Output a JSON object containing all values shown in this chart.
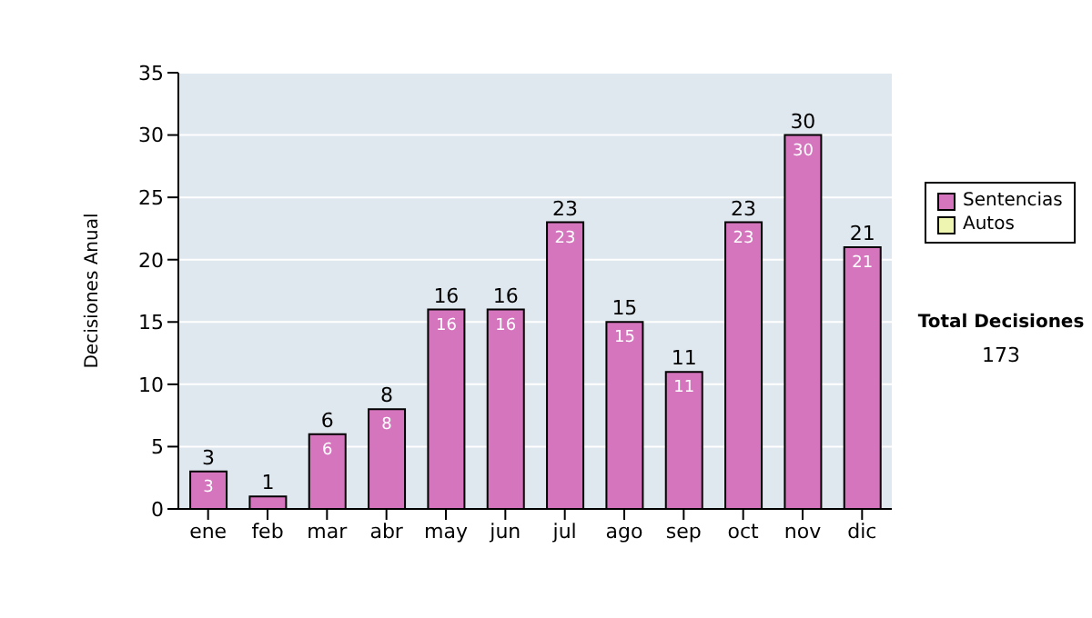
{
  "chart_data": {
    "type": "bar",
    "ylabel": "Decisiones Anual",
    "categories": [
      "ene",
      "feb",
      "mar",
      "abr",
      "may",
      "jun",
      "jul",
      "ago",
      "sep",
      "oct",
      "nov",
      "dic"
    ],
    "series": [
      {
        "name": "Sentencias",
        "color": "#d475bd",
        "values": [
          3,
          1,
          6,
          8,
          16,
          16,
          23,
          15,
          11,
          23,
          30,
          21
        ],
        "value_labels": [
          "3",
          null,
          "6",
          "8",
          "16",
          "16",
          "23",
          "15",
          "11",
          "23",
          "30",
          "21"
        ]
      },
      {
        "name": "Autos",
        "color": "#eef5b0",
        "values": [
          0,
          0,
          0,
          0,
          0,
          0,
          0,
          0,
          0,
          0,
          0,
          0
        ]
      }
    ],
    "stacked": true,
    "totals": [
      "3",
      "1",
      "6",
      "8",
      "16",
      "16",
      "23",
      "15",
      "11",
      "23",
      "30",
      "21"
    ],
    "ylim": [
      0,
      35
    ],
    "yticks": [
      0,
      5,
      10,
      15,
      20,
      25,
      30,
      35
    ],
    "grid": "y",
    "legend": "right",
    "annotations": [
      "Total Decisiones",
      "173"
    ]
  }
}
